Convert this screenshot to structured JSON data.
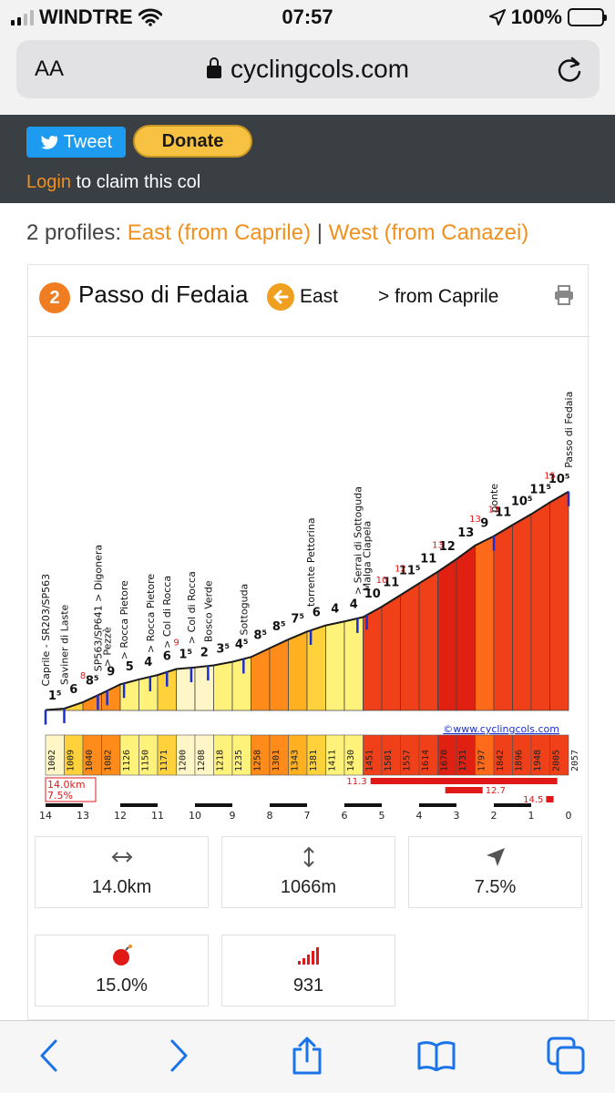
{
  "status": {
    "carrier": "WINDTRE",
    "time": "07:57",
    "battery": "100%"
  },
  "browser": {
    "aa_label": "AA",
    "url": "cyclingcols.com"
  },
  "site": {
    "tweet_label": "Tweet",
    "donate_label": "Donate",
    "login_link": "Login",
    "login_suffix": " to claim this col",
    "profiles_prefix": "2 profiles: ",
    "profile_east": "East (from Caprile)",
    "profile_sep": " | ",
    "profile_west": "West (from Canazei)"
  },
  "profile": {
    "badge": "2",
    "col_name": "Passo di Fedaia",
    "direction": "East",
    "from": "> from Caprile",
    "copyright": "©www.cyclingcols.com",
    "summary_distance": "14.0km",
    "summary_grade": "7.5%"
  },
  "chart_data": {
    "type": "area",
    "title": "",
    "xlabel": "",
    "ylabel": "",
    "x_ticks": [
      14,
      13,
      12,
      11,
      10,
      9,
      8,
      7,
      6,
      5,
      4,
      3,
      2,
      1,
      0
    ],
    "km_remaining": [
      14.0,
      13.5,
      13.0,
      12.5,
      12.0,
      11.5,
      11.0,
      10.5,
      10.0,
      9.5,
      9.0,
      8.5,
      8.0,
      7.5,
      7.0,
      6.5,
      6.0,
      5.5,
      5.0,
      4.5,
      4.0,
      3.5,
      3.0,
      2.5,
      2.0,
      1.5,
      1.0,
      0.5,
      0.0
    ],
    "altitudes": [
      1002,
      1009,
      1040,
      1082,
      1126,
      1150,
      1171,
      1200,
      1208,
      1218,
      1235,
      1258,
      1301,
      1343,
      1381,
      1411,
      1430,
      1451,
      1501,
      1557,
      1614,
      1670,
      1731,
      1797,
      1842,
      1896,
      1948,
      2005,
      2057
    ],
    "segment_grades": [
      "1⁵",
      "6",
      "8⁵",
      "9",
      "5",
      "4",
      "6",
      "1⁵",
      "2",
      "3⁵",
      "4⁵",
      "8⁵",
      "8⁵",
      "7⁵",
      "6",
      "4",
      "4",
      "10",
      "11",
      "11⁵",
      "11",
      "12",
      "13",
      "9",
      "11",
      "10⁵",
      "11⁵",
      "10⁵"
    ],
    "max_grades": [
      {
        "km": 13.0,
        "label": "8"
      },
      {
        "km": 10.5,
        "label": "9"
      },
      {
        "km": 5.0,
        "label": "10"
      },
      {
        "km": 4.5,
        "label": "12"
      },
      {
        "km": 3.5,
        "label": "13"
      },
      {
        "km": 2.5,
        "label": "13"
      },
      {
        "km": 2.0,
        "label": "13"
      },
      {
        "km": 0.5,
        "label": "15"
      }
    ],
    "waypoints": [
      {
        "km": 14.0,
        "label": "Caprile - SR203/SP563"
      },
      {
        "km": 13.5,
        "label": "Saviner di Laste"
      },
      {
        "km": 12.6,
        "label": "SP563/SP641 > Digonera"
      },
      {
        "km": 12.35,
        "label": "> Pezzè"
      },
      {
        "km": 11.9,
        "label": "> Rocca Pietore"
      },
      {
        "km": 11.2,
        "label": "> Rocca Pietore"
      },
      {
        "km": 10.75,
        "label": "> Col di Rocca"
      },
      {
        "km": 10.1,
        "label": "> Col di Rocca"
      },
      {
        "km": 9.65,
        "label": "Bosco Verde"
      },
      {
        "km": 8.7,
        "label": "Sottoguda"
      },
      {
        "km": 6.9,
        "label": "torrente Pettorina"
      },
      {
        "km": 5.65,
        "label": "> Serrai di Sottoguda"
      },
      {
        "km": 5.4,
        "label": "Malga Ciapela"
      },
      {
        "km": 2.0,
        "label": "ponte"
      },
      {
        "km": 0.0,
        "label": "Passo di Fedaia"
      }
    ],
    "steep_sections": [
      {
        "label": "11.3",
        "from_km": 5.3,
        "to_km": 0.3
      },
      {
        "label": "12.7",
        "from_km": 3.3,
        "to_km": 2.3
      },
      {
        "label": "14.5",
        "from_km": 0.6,
        "to_km": 0.4
      }
    ],
    "xlim": [
      14,
      0
    ],
    "ylim": [
      1000,
      2100
    ]
  },
  "stats": [
    {
      "icon": "distance-icon",
      "value": "14.0km"
    },
    {
      "icon": "elevation-gain-icon",
      "value": "1066m"
    },
    {
      "icon": "average-grade-icon",
      "value": "7.5%"
    },
    {
      "icon": "max-grade-bomb-icon",
      "value": "15.0%"
    },
    {
      "icon": "difficulty-score-icon",
      "value": "931"
    }
  ],
  "colors": {
    "accent": "#f0901e",
    "dark_bar": "#3a3f44",
    "tweet": "#1d9bf0",
    "donate": "#f7c242"
  }
}
